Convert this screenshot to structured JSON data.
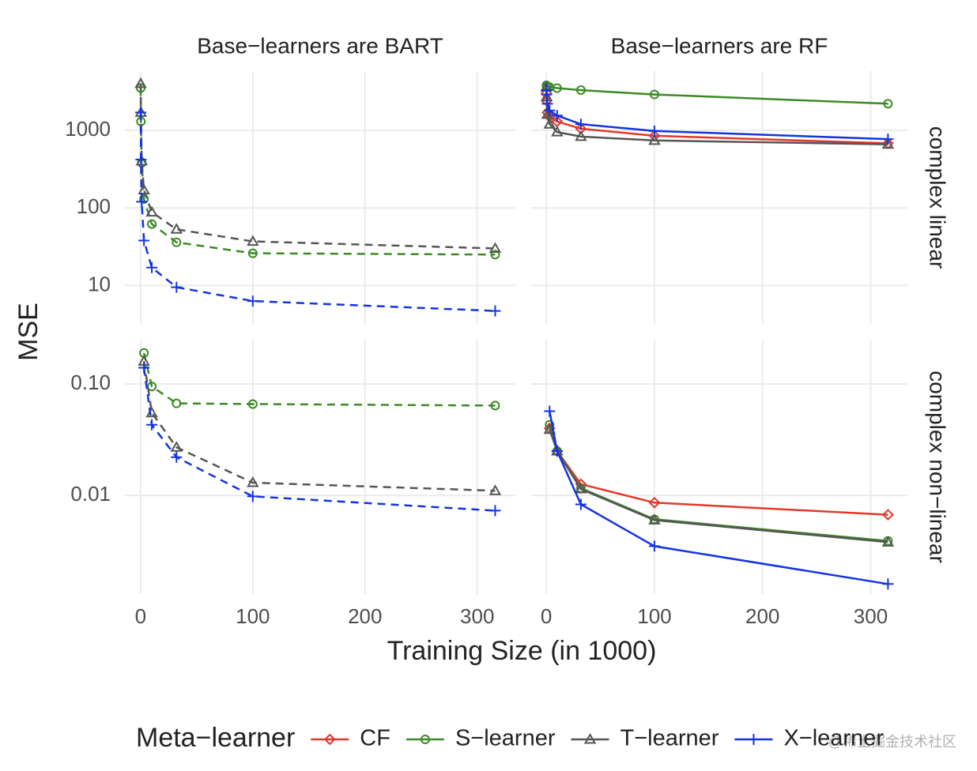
{
  "chart_data": {
    "type": "line",
    "xlabel": "Training Size (in 1000)",
    "ylabel": "MSE",
    "legend_title": "Meta−learner",
    "legend_position": "bottom",
    "log_y": true,
    "grid": true,
    "x": [
      0.1,
      0.3,
      1,
      3,
      10,
      32,
      100,
      316
    ],
    "xlim": [
      -14,
      334
    ],
    "xticks": [
      0,
      100,
      200,
      300
    ],
    "columns": [
      {
        "title": "Base−learners are BART",
        "linestyle": "dashed"
      },
      {
        "title": "Base−learners are RF",
        "linestyle": "solid"
      }
    ],
    "rows": [
      {
        "label": "complex linear",
        "ylim": [
          3.2,
          5800
        ],
        "yticks": [
          10,
          100,
          1000
        ]
      },
      {
        "label": "complex non−linear",
        "ylim": [
          0.0013,
          0.25
        ],
        "yticks": [
          0.01,
          {
            "value": 0.1,
            "label": "0.10"
          }
        ]
      }
    ],
    "series": [
      {
        "name": "CF",
        "color": "#e0392c",
        "marker": "diamond"
      },
      {
        "name": "S−learner",
        "color": "#3b8a25",
        "marker": "circle"
      },
      {
        "name": "T−learner",
        "color": "#555555",
        "marker": "triangle"
      },
      {
        "name": "X−learner",
        "color": "#1234e0",
        "marker": "plus"
      }
    ],
    "panels": [
      [
        {
          "values": [
            [
              null,
              null,
              null,
              null,
              null,
              null,
              null,
              null
            ],
            [
              3500,
              1300,
              380,
              130,
              62,
              36,
              26,
              25
            ],
            [
              4000,
              1700,
              400,
              170,
              88,
              53,
              37,
              30
            ],
            [
              1700,
              420,
              120,
              38,
              17,
              9.5,
              6.3,
              4.7
            ]
          ]
        },
        {
          "values": [
            [
              3000,
              2400,
              1700,
              1500,
              1300,
              1050,
              850,
              680
            ],
            [
              3800,
              3700,
              3700,
              3600,
              3500,
              3300,
              2900,
              2200
            ],
            [
              3600,
              2700,
              1600,
              1200,
              950,
              830,
              740,
              660
            ],
            [
              3300,
              2900,
              2200,
              1800,
              1550,
              1200,
              980,
              770
            ]
          ]
        }
      ],
      [
        {
          "values": [
            [
              null,
              null,
              null,
              null,
              null,
              null,
              null,
              null
            ],
            [
              null,
              null,
              null,
              0.19,
              0.095,
              0.067,
              0.066,
              0.064
            ],
            [
              null,
              null,
              null,
              0.16,
              0.055,
              0.027,
              0.013,
              0.011
            ],
            [
              null,
              null,
              null,
              0.14,
              0.043,
              0.022,
              0.0098,
              0.0073
            ]
          ]
        },
        {
          "values": [
            [
              null,
              null,
              null,
              0.04,
              0.025,
              0.0126,
              0.0086,
              0.0067
            ],
            [
              null,
              null,
              null,
              0.043,
              0.025,
              0.0116,
              0.0061,
              0.0039
            ],
            [
              null,
              null,
              null,
              0.039,
              0.025,
              0.0114,
              0.006,
              0.0038
            ],
            [
              null,
              null,
              null,
              0.057,
              0.025,
              0.0083,
              0.0035,
              0.0016
            ]
          ]
        }
      ]
    ],
    "watermark": "@稀土掘金技术社区"
  }
}
